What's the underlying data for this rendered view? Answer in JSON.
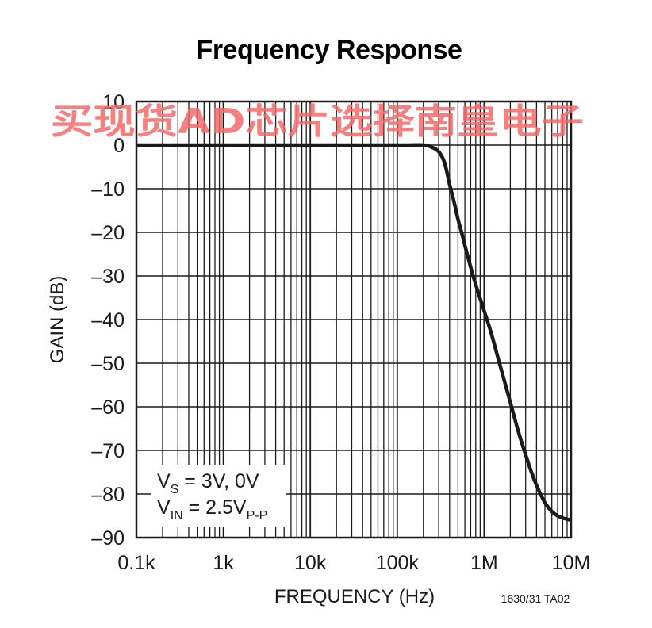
{
  "chart_data": {
    "type": "line",
    "title": "Frequency Response",
    "xlabel": "FREQUENCY (Hz)",
    "ylabel": "GAIN (dB)",
    "x_scale": "log",
    "xlim": [
      100,
      10000000
    ],
    "ylim": [
      -90,
      10
    ],
    "grid": true,
    "x_tick_values": [
      100,
      1000,
      10000,
      100000,
      1000000,
      10000000
    ],
    "x_tick_labels": [
      "0.1k",
      "1k",
      "10k",
      "100k",
      "1M",
      "10M"
    ],
    "y_tick_values": [
      10,
      0,
      -10,
      -20,
      -30,
      -40,
      -50,
      -60,
      -70,
      -80,
      -90
    ],
    "y_tick_labels": [
      "10",
      "0",
      "–10",
      "–20",
      "–30",
      "–40",
      "–50",
      "–60",
      "–70",
      "–80",
      "–90"
    ],
    "series": [
      {
        "x": [
          100,
          1000,
          10000,
          100000,
          200000,
          250000,
          300000,
          350000,
          400000,
          450000,
          500000,
          550000,
          600000,
          700000,
          800000,
          1000000,
          1200000,
          1500000,
          2000000,
          2500000,
          3000000,
          3500000,
          4000000,
          5000000,
          6000000,
          7000000,
          8000000,
          10000000
        ],
        "y": [
          0,
          0,
          0,
          0,
          0,
          -0.5,
          -1.5,
          -4,
          -9,
          -13,
          -17,
          -20,
          -23,
          -28,
          -32,
          -38,
          -43,
          -50,
          -59,
          -66,
          -71,
          -75,
          -78,
          -82,
          -84,
          -85,
          -85.5,
          -86
        ]
      }
    ],
    "annotation": {
      "line1_main": "V",
      "line1_sub": "S",
      "line1_rest": " = 3V, 0V",
      "line2_main": "V",
      "line2_sub": "IN",
      "line2_mid": " = 2.5V",
      "line2_sub2": "P-P"
    },
    "figure_note": "1630/31 TA02"
  },
  "watermark": "买现货AD芯片选择南皇电子",
  "colors": {
    "curve": "#1a1a1a",
    "grid": "#1a1a1a",
    "watermark": "#f26a6a",
    "background": "#ffffff"
  }
}
